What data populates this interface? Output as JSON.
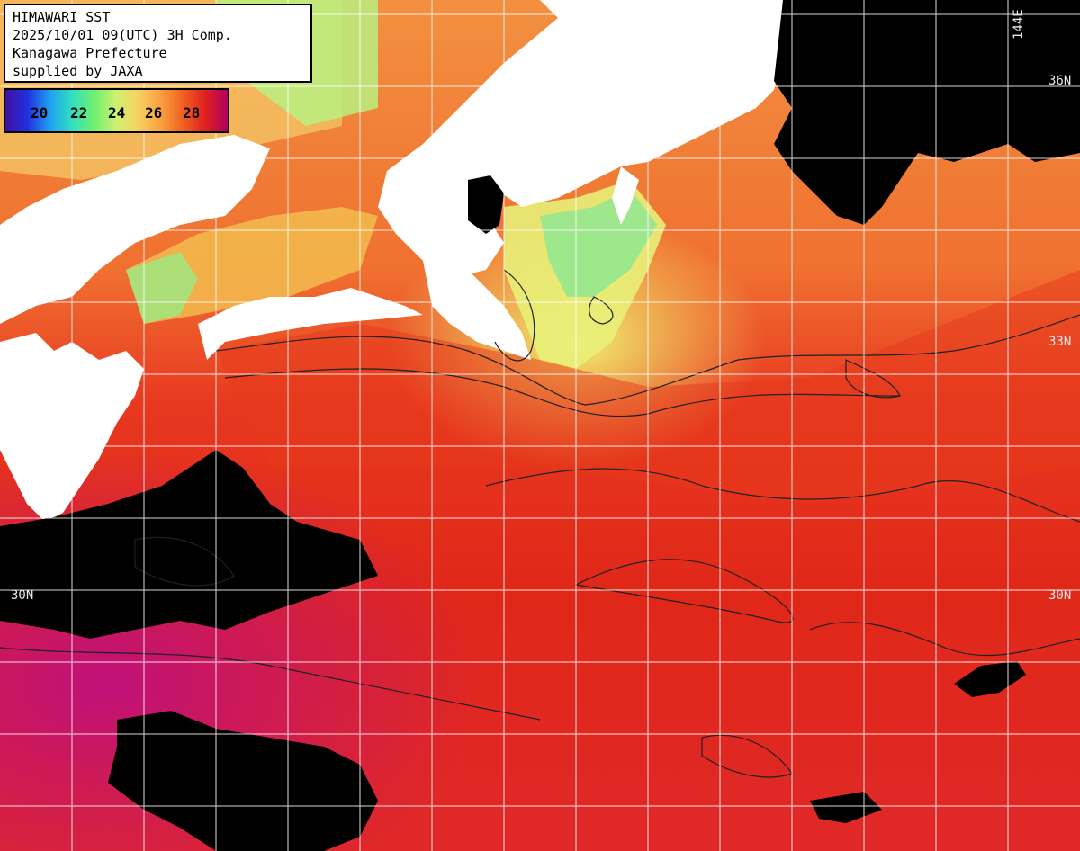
{
  "info": {
    "line1": "HIMAWARI SST",
    "line2": "2025/10/01 09(UTC) 3H Comp.",
    "line3": "Kanagawa Prefecture",
    "line4": "supplied by JAXA"
  },
  "legend": {
    "ticks": [
      "20",
      "22",
      "24",
      "26",
      "28"
    ]
  },
  "grid_labels": {
    "lon_top_right": "144E",
    "lat_36_right": "36N",
    "lat_33_right": "33N",
    "lat_30_right": "30N",
    "lat_30_left": "30N"
  },
  "colors": {
    "land": "#ffffff",
    "cloud": "#000000",
    "grid": "#ffffff",
    "contour": "#202020"
  }
}
